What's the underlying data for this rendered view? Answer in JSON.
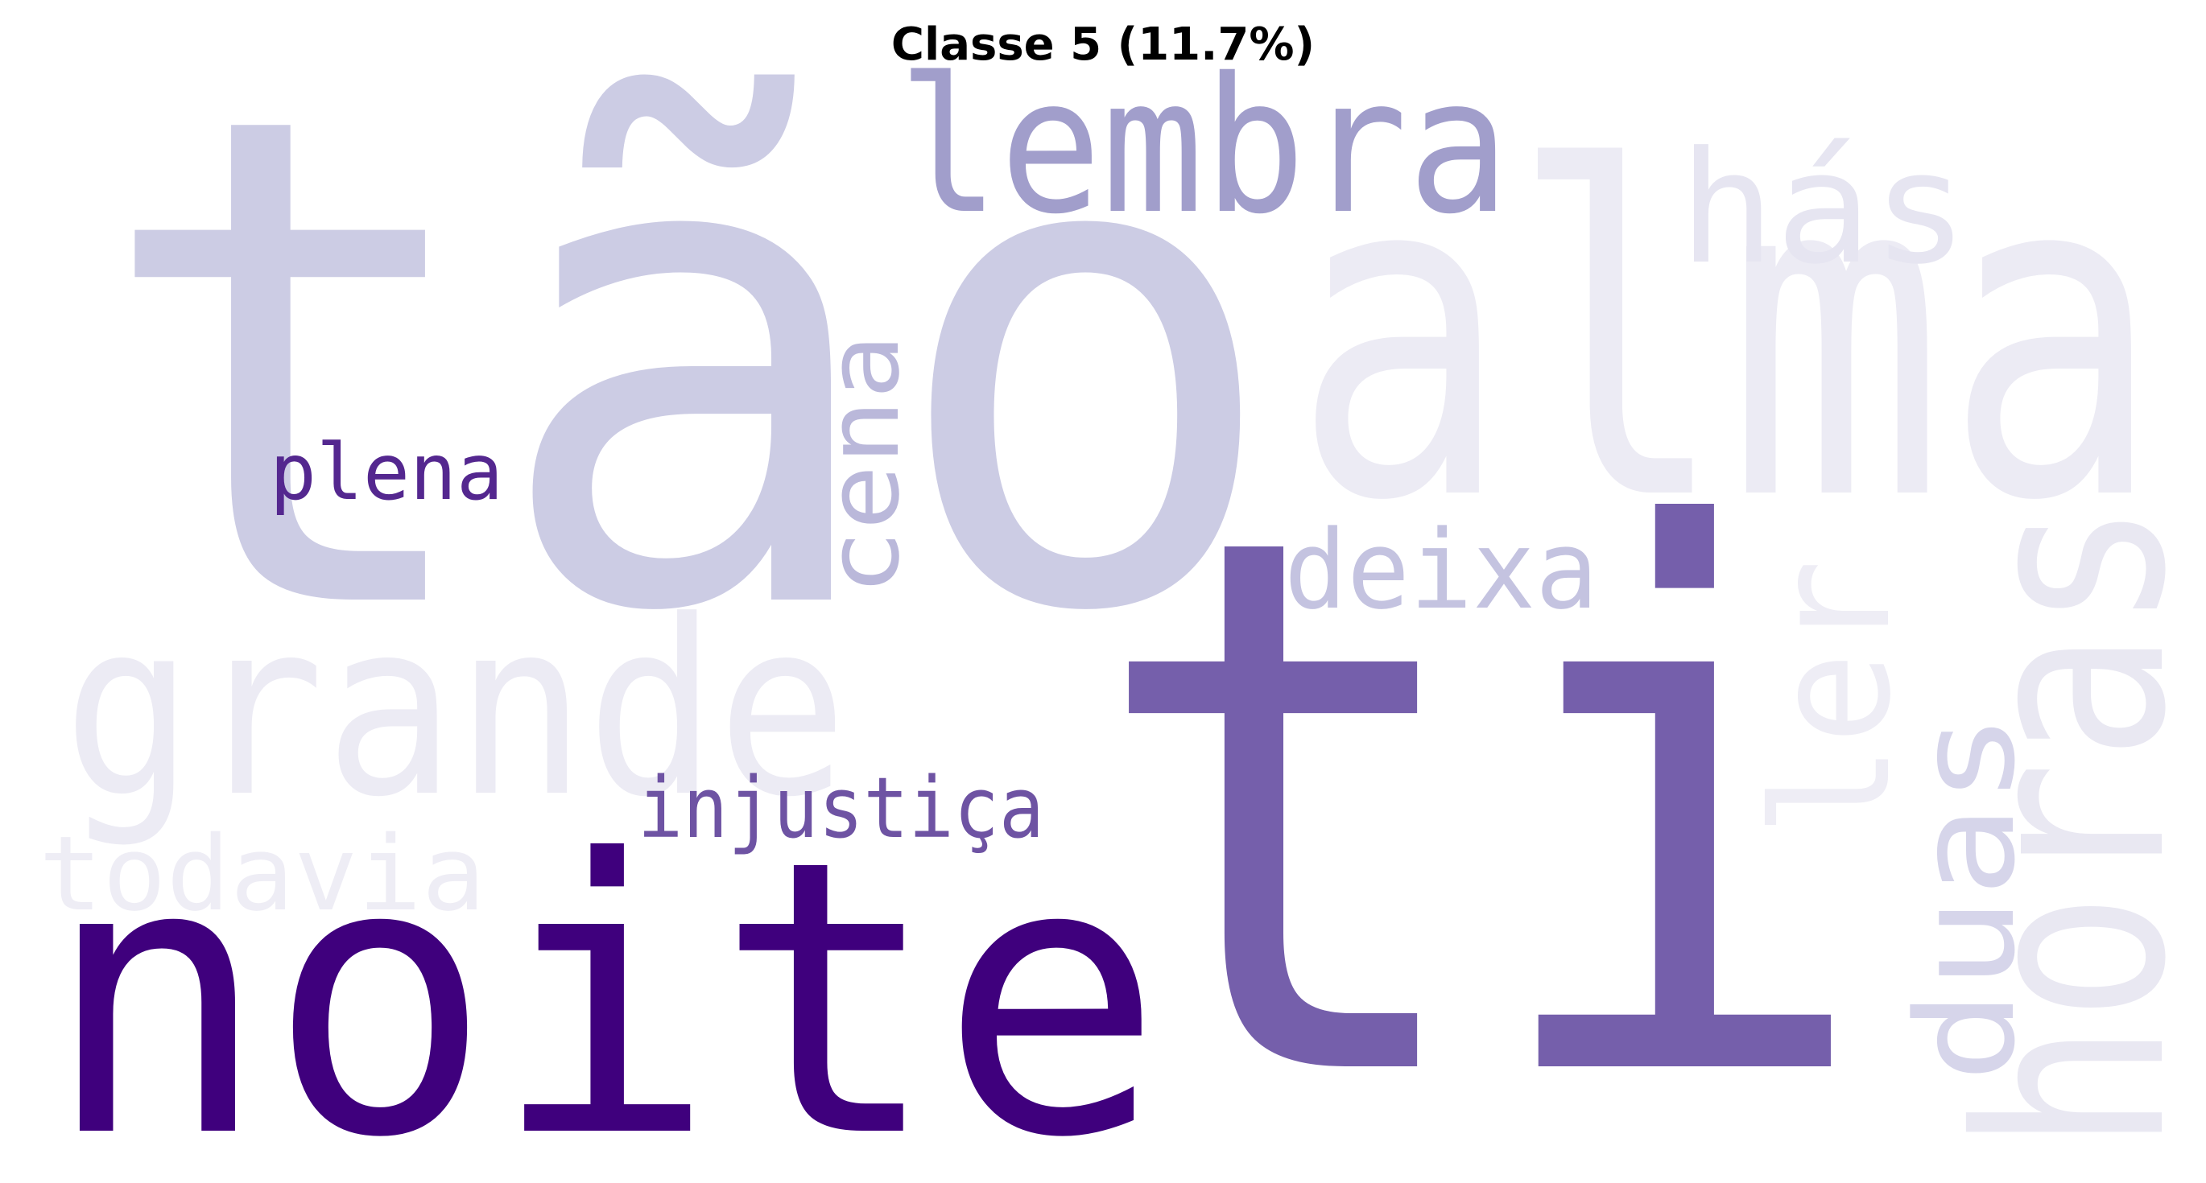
{
  "title": "Classe 5 (11.7%)",
  "words": [
    {
      "text": "tão",
      "color": "#cccce4"
    },
    {
      "text": "ti",
      "color": "#755fab"
    },
    {
      "text": "noite",
      "color": "#3f007d"
    },
    {
      "text": "alma",
      "color": "#ecebf4"
    },
    {
      "text": "lembra",
      "color": "#a19ecb"
    },
    {
      "text": "grande",
      "color": "#ecebf4"
    },
    {
      "text": "horas",
      "color": "#e9e8f2"
    },
    {
      "text": "hás",
      "color": "#e6e5f1"
    },
    {
      "text": "deixa",
      "color": "#c4c3e0"
    },
    {
      "text": "cena",
      "color": "#bab8da"
    },
    {
      "text": "plena",
      "color": "#54278f"
    },
    {
      "text": "injustiça",
      "color": "#6e53a3"
    },
    {
      "text": "ler",
      "color": "#eeedf5"
    },
    {
      "text": "duas",
      "color": "#d6d5ea"
    },
    {
      "text": "todavia",
      "color": "#eeedf5"
    }
  ]
}
